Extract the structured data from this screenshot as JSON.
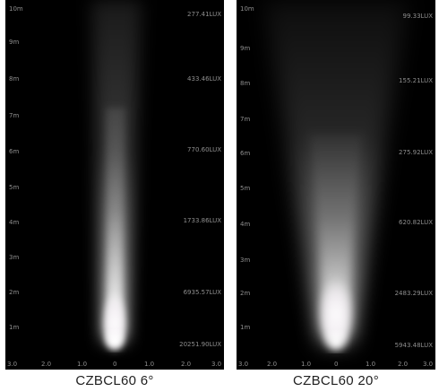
{
  "panels": [
    {
      "caption": "CZBCL60  6°",
      "distance_labels": [
        "10m",
        "9m",
        "8m",
        "7m",
        "6m",
        "5m",
        "4m",
        "3m",
        "2m",
        "1m"
      ],
      "lux_labels": [
        "277.41LUX",
        "433.46LUX",
        "770.60LUX",
        "1733.86LUX",
        "6935.57LUX",
        "20251.90LUX"
      ],
      "x_ticks": [
        "3.0",
        "2.0",
        "1.0",
        "0",
        "1.0",
        "2.0",
        "3.0"
      ]
    },
    {
      "caption": "CZBCL60  20°",
      "distance_labels": [
        "10m",
        "9m",
        "8m",
        "7m",
        "6m",
        "5m",
        "4m",
        "3m",
        "2m",
        "1m"
      ],
      "lux_labels": [
        "99.33LUX",
        "155.21LUX",
        "275.92LUX",
        "620.82LUX",
        "2483.29LUX",
        "5943.48LUX"
      ],
      "x_ticks": [
        "3.0",
        "2.0",
        "1.0",
        "0",
        "1.0",
        "2.0",
        "3.0"
      ]
    }
  ],
  "colors": {
    "background": "#000000",
    "beam": "#ffffff",
    "label": "#8e8e8e"
  }
}
